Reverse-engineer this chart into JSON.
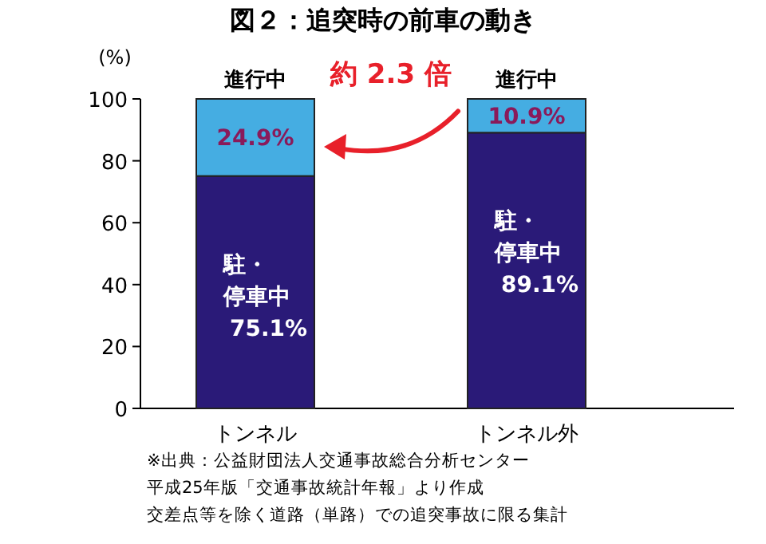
{
  "chart_data": {
    "type": "bar",
    "stacked": true,
    "title": "図２：追突時の前車の動き",
    "ylabel": "(%)",
    "categories": [
      "トンネル",
      "トンネル外"
    ],
    "ylim": [
      0,
      100
    ],
    "yticks": [
      0,
      20,
      40,
      60,
      80,
      100
    ],
    "grid": false,
    "series": [
      {
        "name": "駐・停車中",
        "color": "#2a1a78",
        "values": [
          75.1,
          89.1
        ],
        "value_labels": [
          "75.1%",
          "89.1%"
        ]
      },
      {
        "name": "進行中",
        "color": "#45ade2",
        "values": [
          24.9,
          10.9
        ],
        "value_labels": [
          "24.9%",
          "10.9%"
        ]
      }
    ],
    "annotations": [
      "約 2.3 倍",
      "※出典：公益財団法人交通事故総合分析センター",
      "平成25年版「交通事故統計年報」より作成",
      "交差点等を除く道路（単路）での追突事故に限る集計"
    ]
  }
}
